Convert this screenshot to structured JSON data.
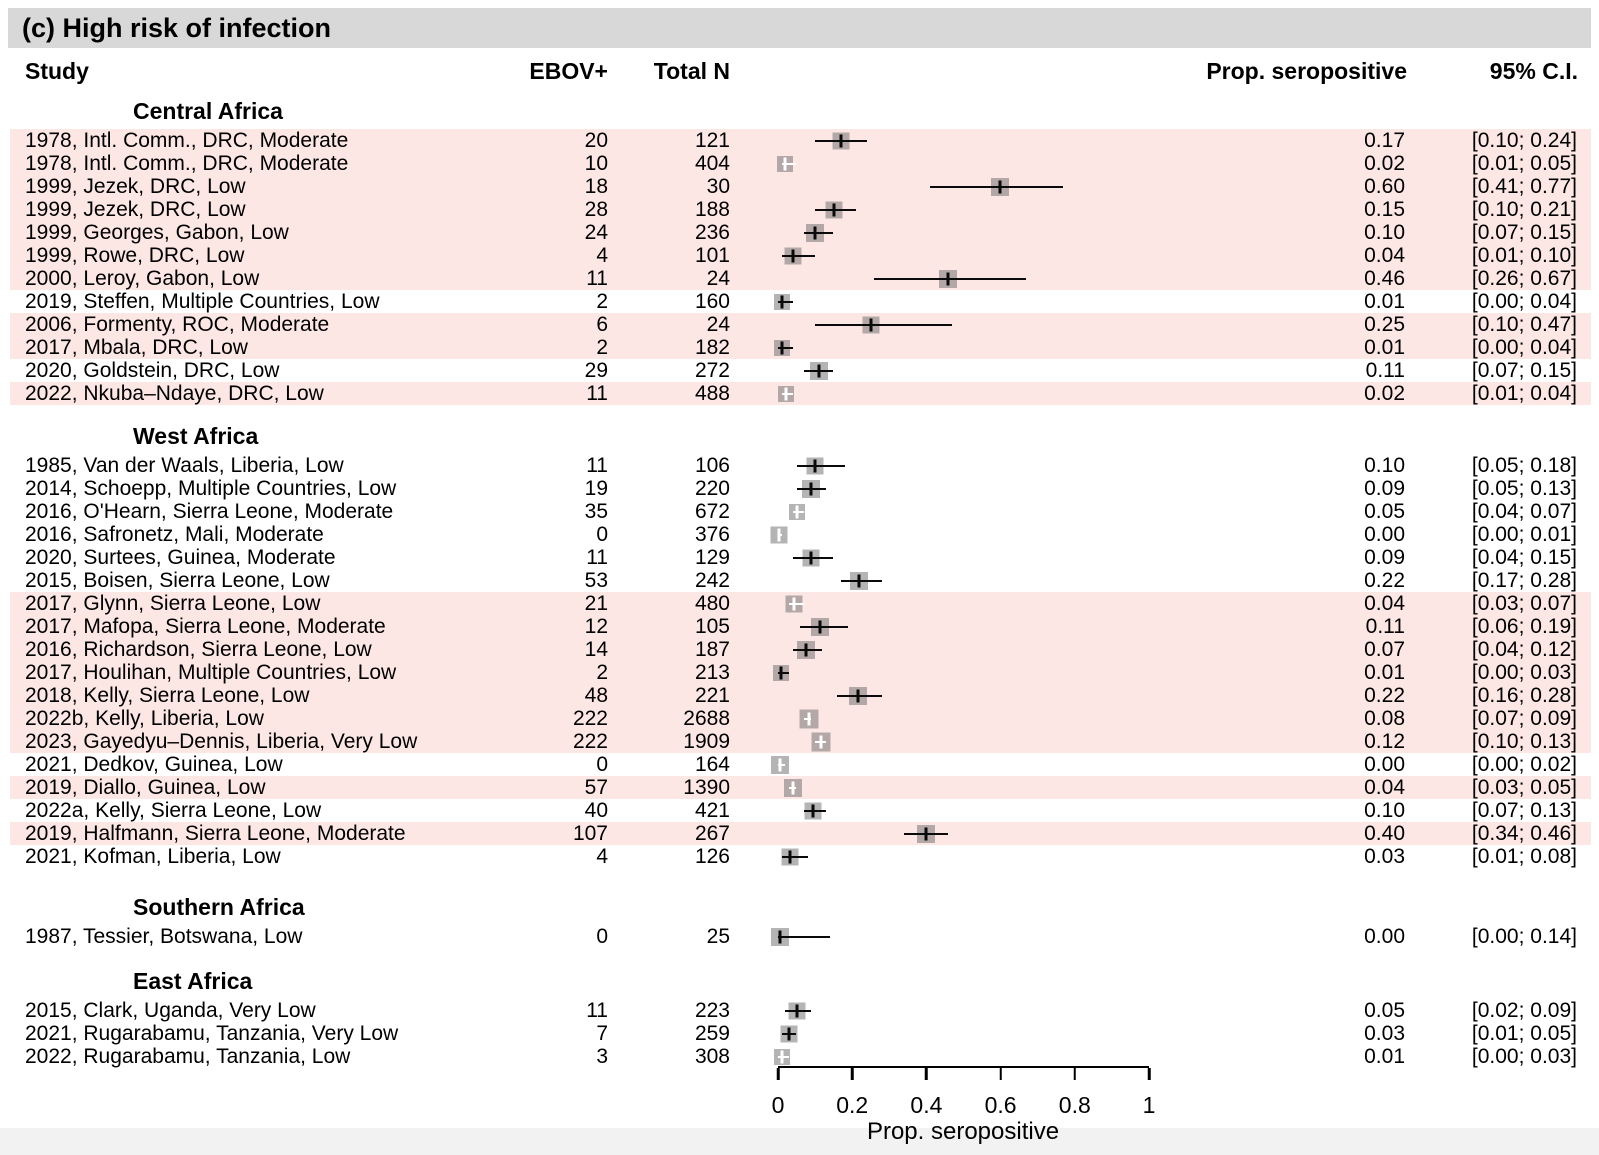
{
  "title": "(c) High risk of infection",
  "columns": {
    "study": "Study",
    "ebov": "EBOV+",
    "total": "Total N",
    "prop": "Prop. seropositive",
    "ci": "95% C.I."
  },
  "colors": {
    "highlight_row": "#fce7e5",
    "title_bar": "#d8d8d8",
    "square": "#b4b4b4",
    "whisker": "#0a0a0a"
  },
  "chart_data": {
    "type": "forest",
    "title": "(c) High risk of infection",
    "xlabel": "Prop. seropositive",
    "xlim": [
      0,
      1
    ],
    "axis": {
      "label": "Prop. seropositive",
      "ticks": [
        {
          "value": 0.0,
          "label": "0"
        },
        {
          "value": 0.2,
          "label": "0.2"
        },
        {
          "value": 0.4,
          "label": "0.4"
        },
        {
          "value": 0.6,
          "label": "0.6"
        },
        {
          "value": 0.8,
          "label": "0.8"
        },
        {
          "value": 1.0,
          "label": "1"
        }
      ]
    },
    "sections": [
      {
        "name": "Central Africa",
        "rows": [
          {
            "label": "1978, Intl. Comm., DRC, Moderate",
            "ebov": "20",
            "total": "121",
            "prop": "0.17",
            "ci": "[0.10; 0.24]",
            "est": 0.17,
            "lo": 0.1,
            "hi": 0.24,
            "hl": true,
            "w": 17,
            "inner": false
          },
          {
            "label": "1978, Intl. Comm., DRC, Moderate",
            "ebov": "10",
            "total": "404",
            "prop": "0.02",
            "ci": "[0.01; 0.05]",
            "est": 0.02,
            "lo": 0.01,
            "hi": 0.05,
            "hl": true,
            "w": 16,
            "inner": true
          },
          {
            "label": "1999, Jezek, DRC, Low",
            "ebov": "18",
            "total": "30",
            "prop": "0.60",
            "ci": "[0.41; 0.77]",
            "est": 0.6,
            "lo": 0.41,
            "hi": 0.77,
            "hl": true,
            "w": 18,
            "inner": false
          },
          {
            "label": "1999, Jezek, DRC, Low",
            "ebov": "28",
            "total": "188",
            "prop": "0.15",
            "ci": "[0.10; 0.21]",
            "est": 0.15,
            "lo": 0.1,
            "hi": 0.21,
            "hl": true,
            "w": 17,
            "inner": false
          },
          {
            "label": "1999, Georges, Gabon, Low",
            "ebov": "24",
            "total": "236",
            "prop": "0.10",
            "ci": "[0.07; 0.15]",
            "est": 0.1,
            "lo": 0.07,
            "hi": 0.15,
            "hl": true,
            "w": 18,
            "inner": false
          },
          {
            "label": "1999, Rowe, DRC, Low",
            "ebov": "4",
            "total": "101",
            "prop": "0.04",
            "ci": "[0.01; 0.10]",
            "est": 0.04,
            "lo": 0.01,
            "hi": 0.1,
            "hl": true,
            "w": 17,
            "inner": false
          },
          {
            "label": "2000, Leroy, Gabon, Low",
            "ebov": "11",
            "total": "24",
            "prop": "0.46",
            "ci": "[0.26; 0.67]",
            "est": 0.46,
            "lo": 0.26,
            "hi": 0.67,
            "hl": true,
            "w": 18,
            "inner": false
          },
          {
            "label": "2019, Steffen, Multiple Countries, Low",
            "ebov": "2",
            "total": "160",
            "prop": "0.01",
            "ci": "[0.00; 0.04]",
            "est": 0.012,
            "lo": 0.0,
            "hi": 0.04,
            "hl": false,
            "w": 16,
            "inner": false
          },
          {
            "label": "2006, Formenty, ROC, Moderate",
            "ebov": "6",
            "total": "24",
            "prop": "0.25",
            "ci": "[0.10; 0.47]",
            "est": 0.25,
            "lo": 0.1,
            "hi": 0.47,
            "hl": true,
            "w": 17,
            "inner": false
          },
          {
            "label": "2017, Mbala, DRC, Low",
            "ebov": "2",
            "total": "182",
            "prop": "0.01",
            "ci": "[0.00; 0.04]",
            "est": 0.011,
            "lo": 0.0,
            "hi": 0.04,
            "hl": true,
            "w": 16,
            "inner": false
          },
          {
            "label": "2020, Goldstein, DRC, Low",
            "ebov": "29",
            "total": "272",
            "prop": "0.11",
            "ci": "[0.07; 0.15]",
            "est": 0.11,
            "lo": 0.07,
            "hi": 0.15,
            "hl": false,
            "w": 18,
            "inner": false
          },
          {
            "label": "2022, Nkuba–Ndaye, DRC, Low",
            "ebov": "11",
            "total": "488",
            "prop": "0.02",
            "ci": "[0.01; 0.04]",
            "est": 0.022,
            "lo": 0.01,
            "hi": 0.04,
            "hl": true,
            "w": 16,
            "inner": true
          }
        ]
      },
      {
        "name": "West Africa",
        "rows": [
          {
            "label": "1985, Van der Waals, Liberia, Low",
            "ebov": "11",
            "total": "106",
            "prop": "0.10",
            "ci": "[0.05; 0.18]",
            "est": 0.1,
            "lo": 0.05,
            "hi": 0.18,
            "hl": false,
            "w": 17,
            "inner": false
          },
          {
            "label": "2014, Schoepp, Multiple Countries, Low",
            "ebov": "19",
            "total": "220",
            "prop": "0.09",
            "ci": "[0.05; 0.13]",
            "est": 0.09,
            "lo": 0.05,
            "hi": 0.13,
            "hl": false,
            "w": 18,
            "inner": false
          },
          {
            "label": "2016, O'Hearn, Sierra Leone, Moderate",
            "ebov": "35",
            "total": "672",
            "prop": "0.05",
            "ci": "[0.04; 0.07]",
            "est": 0.052,
            "lo": 0.04,
            "hi": 0.07,
            "hl": false,
            "w": 16,
            "inner": true
          },
          {
            "label": "2016, Safronetz, Mali, Moderate",
            "ebov": "0",
            "total": "376",
            "prop": "0.00",
            "ci": "[0.00; 0.01]",
            "est": 0.004,
            "lo": 0.0,
            "hi": 0.01,
            "hl": false,
            "w": 17,
            "inner": true
          },
          {
            "label": "2020, Surtees, Guinea, Moderate",
            "ebov": "11",
            "total": "129",
            "prop": "0.09",
            "ci": "[0.04; 0.15]",
            "est": 0.09,
            "lo": 0.04,
            "hi": 0.15,
            "hl": false,
            "w": 17,
            "inner": false
          },
          {
            "label": "2015, Boisen, Sierra Leone, Low",
            "ebov": "53",
            "total": "242",
            "prop": "0.22",
            "ci": "[0.17; 0.28]",
            "est": 0.22,
            "lo": 0.17,
            "hi": 0.28,
            "hl": false,
            "w": 18,
            "inner": false
          },
          {
            "label": "2017, Glynn, Sierra Leone, Low",
            "ebov": "21",
            "total": "480",
            "prop": "0.04",
            "ci": "[0.03; 0.07]",
            "est": 0.044,
            "lo": 0.03,
            "hi": 0.07,
            "hl": true,
            "w": 17,
            "inner": true
          },
          {
            "label": "2017, Mafopa, Sierra Leone, Moderate",
            "ebov": "12",
            "total": "105",
            "prop": "0.11",
            "ci": "[0.06; 0.19]",
            "est": 0.114,
            "lo": 0.06,
            "hi": 0.19,
            "hl": true,
            "w": 18,
            "inner": false
          },
          {
            "label": "2016, Richardson, Sierra Leone, Low",
            "ebov": "14",
            "total": "187",
            "prop": "0.07",
            "ci": "[0.04; 0.12]",
            "est": 0.075,
            "lo": 0.04,
            "hi": 0.12,
            "hl": true,
            "w": 18,
            "inner": false
          },
          {
            "label": "2017, Houlihan, Multiple Countries, Low",
            "ebov": "2",
            "total": "213",
            "prop": "0.01",
            "ci": "[0.00; 0.03]",
            "est": 0.009,
            "lo": 0.0,
            "hi": 0.03,
            "hl": true,
            "w": 16,
            "inner": false
          },
          {
            "label": "2018, Kelly, Sierra Leone, Low",
            "ebov": "48",
            "total": "221",
            "prop": "0.22",
            "ci": "[0.16; 0.28]",
            "est": 0.217,
            "lo": 0.16,
            "hi": 0.28,
            "hl": true,
            "w": 18,
            "inner": false
          },
          {
            "label": "2022b, Kelly, Liberia, Low",
            "ebov": "222",
            "total": "2688",
            "prop": "0.08",
            "ci": "[0.07; 0.09]",
            "est": 0.083,
            "lo": 0.07,
            "hi": 0.09,
            "hl": true,
            "w": 19,
            "inner": true
          },
          {
            "label": "2023, Gayedyu–Dennis, Liberia, Very Low",
            "ebov": "222",
            "total": "1909",
            "prop": "0.12",
            "ci": "[0.10; 0.13]",
            "est": 0.116,
            "lo": 0.1,
            "hi": 0.13,
            "hl": true,
            "w": 19,
            "inner": true
          },
          {
            "label": "2021, Dedkov, Guinea, Low",
            "ebov": "0",
            "total": "164",
            "prop": "0.00",
            "ci": "[0.00; 0.02]",
            "est": 0.005,
            "lo": 0.0,
            "hi": 0.02,
            "hl": false,
            "w": 18,
            "inner": true
          },
          {
            "label": "2019, Diallo, Guinea, Low",
            "ebov": "57",
            "total": "1390",
            "prop": "0.04",
            "ci": "[0.03; 0.05]",
            "est": 0.041,
            "lo": 0.03,
            "hi": 0.05,
            "hl": true,
            "w": 18,
            "inner": true
          },
          {
            "label": "2022a, Kelly, Sierra Leone, Low",
            "ebov": "40",
            "total": "421",
            "prop": "0.10",
            "ci": "[0.07; 0.13]",
            "est": 0.095,
            "lo": 0.07,
            "hi": 0.13,
            "hl": false,
            "w": 17,
            "inner": false
          },
          {
            "label": "2019, Halfmann, Sierra Leone, Moderate",
            "ebov": "107",
            "total": "267",
            "prop": "0.40",
            "ci": "[0.34; 0.46]",
            "est": 0.4,
            "lo": 0.34,
            "hi": 0.46,
            "hl": true,
            "w": 18,
            "inner": false
          },
          {
            "label": "2021, Kofman, Liberia, Low",
            "ebov": "4",
            "total": "126",
            "prop": "0.03",
            "ci": "[0.01; 0.08]",
            "est": 0.032,
            "lo": 0.01,
            "hi": 0.08,
            "hl": false,
            "w": 17,
            "inner": false
          }
        ]
      },
      {
        "name": "Southern Africa",
        "rows": [
          {
            "label": "1987, Tessier, Botswana, Low",
            "ebov": "0",
            "total": "25",
            "prop": "0.00",
            "ci": "[0.00; 0.14]",
            "est": 0.005,
            "lo": 0.0,
            "hi": 0.14,
            "hl": false,
            "w": 18,
            "inner": false
          }
        ]
      },
      {
        "name": "East Africa",
        "rows": [
          {
            "label": "2015, Clark, Uganda, Very Low",
            "ebov": "11",
            "total": "223",
            "prop": "0.05",
            "ci": "[0.02; 0.09]",
            "est": 0.05,
            "lo": 0.02,
            "hi": 0.09,
            "hl": false,
            "w": 17,
            "inner": false
          },
          {
            "label": "2021, Rugarabamu, Tanzania, Very Low",
            "ebov": "7",
            "total": "259",
            "prop": "0.03",
            "ci": "[0.01; 0.05]",
            "est": 0.03,
            "lo": 0.01,
            "hi": 0.05,
            "hl": false,
            "w": 17,
            "inner": false
          },
          {
            "label": "2022, Rugarabamu, Tanzania, Low",
            "ebov": "3",
            "total": "308",
            "prop": "0.01",
            "ci": "[0.00; 0.03]",
            "est": 0.012,
            "lo": 0.0,
            "hi": 0.03,
            "hl": false,
            "w": 16,
            "inner": true
          }
        ]
      }
    ]
  }
}
